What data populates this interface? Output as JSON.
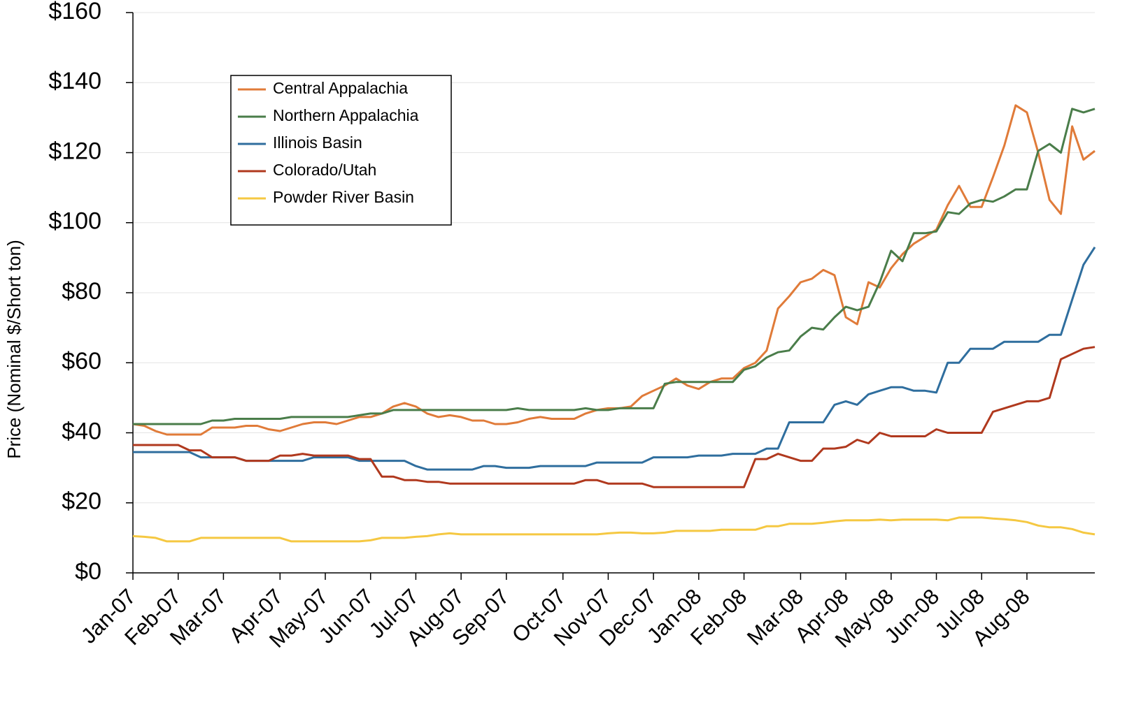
{
  "chart_data": {
    "type": "line",
    "y_label": "Price (Nominal $/Short ton)",
    "categories": [
      "Jan-07",
      null,
      null,
      null,
      "Feb-07",
      null,
      null,
      null,
      "Mar-07",
      null,
      null,
      null,
      null,
      "Apr-07",
      null,
      null,
      null,
      "May-07",
      null,
      null,
      null,
      "Jun-07",
      null,
      null,
      null,
      "Jul-07",
      null,
      null,
      null,
      "Aug-07",
      null,
      null,
      null,
      "Sep-07",
      null,
      null,
      null,
      null,
      "Oct-07",
      null,
      null,
      null,
      "Nov-07",
      null,
      null,
      null,
      "Dec-07",
      null,
      null,
      null,
      "Jan-08",
      null,
      null,
      null,
      "Feb-08",
      null,
      null,
      null,
      null,
      "Mar-08",
      null,
      null,
      null,
      "Apr-08",
      null,
      null,
      null,
      "May-08",
      null,
      null,
      null,
      "Jun-08",
      null,
      null,
      null,
      "Jul-08",
      null,
      null,
      null,
      "Aug-08",
      null,
      null,
      null,
      null,
      null,
      null
    ],
    "series": [
      {
        "name": "Central Appalachia",
        "color": "#e07b39",
        "values": [
          42.5,
          42,
          40.5,
          39.5,
          39.5,
          39.5,
          39.5,
          41.5,
          41.5,
          41.5,
          42,
          42,
          41,
          40.5,
          41.5,
          42.5,
          43,
          43,
          42.5,
          43.5,
          44.5,
          44.5,
          45.5,
          47.5,
          48.5,
          47.5,
          45.5,
          44.5,
          45,
          44.5,
          43.5,
          43.5,
          42.5,
          42.5,
          43,
          44,
          44.5,
          44,
          44,
          44,
          45.5,
          46.5,
          47,
          47,
          47.5,
          50.5,
          52,
          53.5,
          55.5,
          53.5,
          52.5,
          54.5,
          55.5,
          55.5,
          58.5,
          60,
          63.5,
          75.5,
          79,
          83,
          84,
          86.5,
          85,
          73,
          71,
          83,
          81.5,
          87,
          91,
          94,
          96,
          98,
          105,
          110.5,
          104.5,
          104.5,
          113,
          122,
          133.5,
          131.5,
          120,
          106.5,
          102.5,
          127.5,
          118,
          120.5
        ]
      },
      {
        "name": "Northern Appalachia",
        "color": "#4a7d4a",
        "values": [
          42.5,
          42.5,
          42.5,
          42.5,
          42.5,
          42.5,
          42.5,
          43.5,
          43.5,
          44,
          44,
          44,
          44,
          44,
          44.5,
          44.5,
          44.5,
          44.5,
          44.5,
          44.5,
          45,
          45.5,
          45.5,
          46.5,
          46.5,
          46.5,
          46.5,
          46.5,
          46.5,
          46.5,
          46.5,
          46.5,
          46.5,
          46.5,
          47,
          46.5,
          46.5,
          46.5,
          46.5,
          46.5,
          47,
          46.5,
          46.5,
          47,
          47,
          47,
          47,
          54,
          54.5,
          54.5,
          54.5,
          54.5,
          54.5,
          54.5,
          58,
          59,
          61.5,
          63,
          63.5,
          67.5,
          70,
          69.5,
          73,
          76,
          75,
          76,
          83,
          92,
          89,
          97,
          97,
          97.5,
          103,
          102.5,
          105.5,
          106.5,
          106,
          107.5,
          109.5,
          109.5,
          120.5,
          122.5,
          120,
          132.5,
          131.5,
          132.5
        ]
      },
      {
        "name": "Illinois Basin",
        "color": "#2f6e9e",
        "values": [
          34.5,
          34.5,
          34.5,
          34.5,
          34.5,
          34.5,
          33,
          33,
          33,
          33,
          32,
          32,
          32,
          32,
          32,
          32,
          33,
          33,
          33,
          33,
          32,
          32,
          32,
          32,
          32,
          30.5,
          29.5,
          29.5,
          29.5,
          29.5,
          29.5,
          30.5,
          30.5,
          30,
          30,
          30,
          30.5,
          30.5,
          30.5,
          30.5,
          30.5,
          31.5,
          31.5,
          31.5,
          31.5,
          31.5,
          33,
          33,
          33,
          33,
          33.5,
          33.5,
          33.5,
          34,
          34,
          34,
          35.5,
          35.5,
          43,
          43,
          43,
          43,
          48,
          49,
          48,
          51,
          52,
          53,
          53,
          52,
          52,
          51.5,
          60,
          60,
          64,
          64,
          64,
          66,
          66,
          66,
          66,
          68,
          68,
          78,
          88,
          93
        ]
      },
      {
        "name": "Colorado/Utah",
        "color": "#b0391e",
        "values": [
          36.5,
          36.5,
          36.5,
          36.5,
          36.5,
          35,
          35,
          33,
          33,
          33,
          32,
          32,
          32,
          33.5,
          33.5,
          34,
          33.5,
          33.5,
          33.5,
          33.5,
          32.5,
          32.5,
          27.5,
          27.5,
          26.5,
          26.5,
          26,
          26,
          25.5,
          25.5,
          25.5,
          25.5,
          25.5,
          25.5,
          25.5,
          25.5,
          25.5,
          25.5,
          25.5,
          25.5,
          26.5,
          26.5,
          25.5,
          25.5,
          25.5,
          25.5,
          24.5,
          24.5,
          24.5,
          24.5,
          24.5,
          24.5,
          24.5,
          24.5,
          24.5,
          32.5,
          32.5,
          34,
          33,
          32,
          32,
          35.5,
          35.5,
          36,
          38,
          37,
          40,
          39,
          39,
          39,
          39,
          41,
          40,
          40,
          40,
          40,
          46,
          47,
          48,
          49,
          49,
          50,
          61,
          62.5,
          64,
          64.5
        ]
      },
      {
        "name": "Powder River Basin",
        "color": "#f5c842",
        "values": [
          10.5,
          10.3,
          10,
          9,
          9,
          9,
          10,
          10,
          10,
          10,
          10,
          10,
          10,
          10,
          9,
          9,
          9,
          9,
          9,
          9,
          9,
          9.3,
          10,
          10,
          10,
          10.3,
          10.5,
          11,
          11.3,
          11,
          11,
          11,
          11,
          11,
          11,
          11,
          11,
          11,
          11,
          11,
          11,
          11,
          11.3,
          11.5,
          11.5,
          11.3,
          11.3,
          11.5,
          12,
          12,
          12,
          12,
          12.3,
          12.3,
          12.3,
          12.3,
          13.3,
          13.3,
          14,
          14,
          14,
          14.3,
          14.7,
          15,
          15,
          15,
          15.2,
          15,
          15.2,
          15.2,
          15.2,
          15.2,
          15,
          15.8,
          15.8,
          15.8,
          15.5,
          15.3,
          15,
          14.5,
          13.5,
          13,
          13,
          12.5,
          11.5,
          11
        ]
      }
    ],
    "ylim": [
      0,
      160
    ],
    "yticks": [
      {
        "value": 0,
        "label": "$0"
      },
      {
        "value": 20,
        "label": "$20"
      },
      {
        "value": 40,
        "label": "$40"
      },
      {
        "value": 60,
        "label": "$60"
      },
      {
        "value": 80,
        "label": "$80"
      },
      {
        "value": 100,
        "label": "$100"
      },
      {
        "value": 120,
        "label": "$120"
      },
      {
        "value": 140,
        "label": "$140"
      },
      {
        "value": 160,
        "label": "$160"
      }
    ],
    "grid": true,
    "legend": "upper left"
  }
}
